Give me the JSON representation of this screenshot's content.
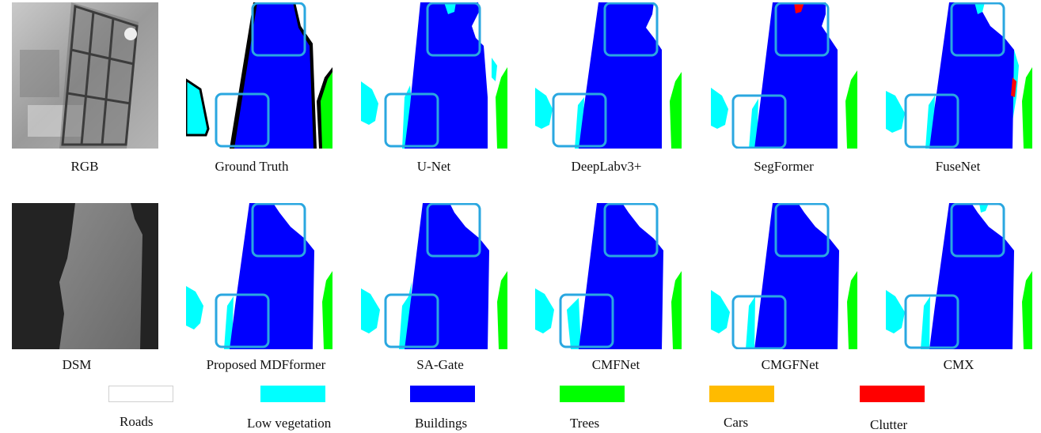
{
  "row1": {
    "captions": [
      "RGB",
      "Ground Truth",
      "U-Net",
      "DeepLabv3+",
      "SegFormer",
      "FuseNet"
    ]
  },
  "row2": {
    "captions": [
      "DSM",
      "Proposed MDFformer",
      "SA-Gate",
      "CMFNet",
      "CMGFNet",
      "CMX"
    ]
  },
  "legend": [
    {
      "label": "Roads",
      "color": "#ffffff"
    },
    {
      "label": "Low vegetation",
      "color": "#00ffff"
    },
    {
      "label": "Buildings",
      "color": "#0000ff"
    },
    {
      "label": "Trees",
      "color": "#00ff00"
    },
    {
      "label": "Cars",
      "color": "#ffbb00"
    },
    {
      "label": "Clutter",
      "color": "#ff0000"
    }
  ],
  "colors": {
    "highlight_box": "#2aa7e0",
    "boundary": "#000000"
  }
}
